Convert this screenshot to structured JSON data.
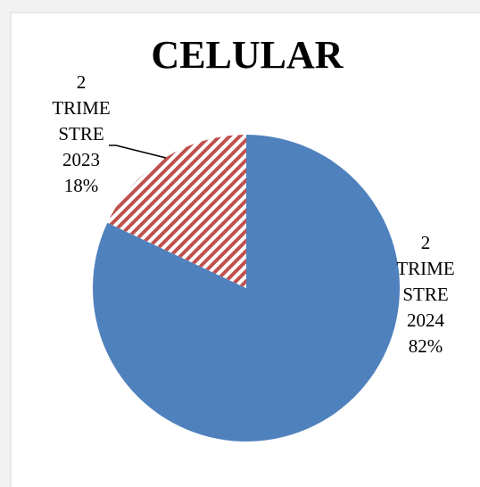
{
  "chart_data": {
    "type": "pie",
    "title": "CELULAR",
    "categories": [
      "2 TRIMESTRE 2024",
      "2 TRIMESTRE 2023"
    ],
    "values": [
      82,
      18
    ],
    "value_labels": [
      "82%",
      "18%"
    ],
    "colors": [
      "#4f81bd",
      "#c0504d"
    ]
  }
}
